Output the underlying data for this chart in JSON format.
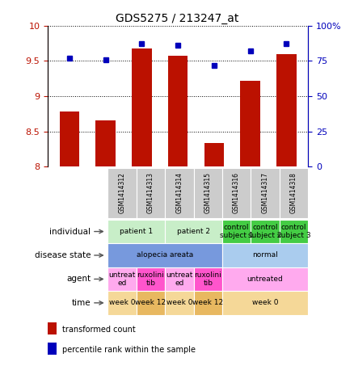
{
  "title": "GDS5275 / 213247_at",
  "samples": [
    "GSM1414312",
    "GSM1414313",
    "GSM1414314",
    "GSM1414315",
    "GSM1414316",
    "GSM1414317",
    "GSM1414318"
  ],
  "transformed_count": [
    8.78,
    8.65,
    9.68,
    9.57,
    8.33,
    9.22,
    9.6
  ],
  "percentile_rank": [
    77,
    76,
    87,
    86,
    72,
    82,
    87
  ],
  "ylim_left": [
    8.0,
    10.0
  ],
  "ylim_right": [
    0,
    100
  ],
  "yticks_left": [
    8.0,
    8.5,
    9.0,
    9.5,
    10.0
  ],
  "ytick_labels_left": [
    "8",
    "8.5",
    "9",
    "9.5",
    "10"
  ],
  "yticks_right": [
    0,
    25,
    50,
    75,
    100
  ],
  "ytick_labels_right": [
    "0",
    "25",
    "50",
    "75",
    "100%"
  ],
  "bar_color": "#bb1100",
  "dot_color": "#0000bb",
  "bar_width": 0.55,
  "annotation_rows": [
    {
      "label": "individual",
      "cells": [
        {
          "text": "patient 1",
          "span": 2,
          "color": "#c8eec8"
        },
        {
          "text": "patient 2",
          "span": 2,
          "color": "#c8eec8"
        },
        {
          "text": "control\nsubject 1",
          "span": 1,
          "color": "#44cc44"
        },
        {
          "text": "control\nsubject 2",
          "span": 1,
          "color": "#44cc44"
        },
        {
          "text": "control\nsubject 3",
          "span": 1,
          "color": "#44cc44"
        }
      ]
    },
    {
      "label": "disease state",
      "cells": [
        {
          "text": "alopecia areata",
          "span": 4,
          "color": "#7799dd"
        },
        {
          "text": "normal",
          "span": 3,
          "color": "#aaccee"
        }
      ]
    },
    {
      "label": "agent",
      "cells": [
        {
          "text": "untreat\ned",
          "span": 1,
          "color": "#ffaaee"
        },
        {
          "text": "ruxolini\ntib",
          "span": 1,
          "color": "#ff55cc"
        },
        {
          "text": "untreat\ned",
          "span": 1,
          "color": "#ffaaee"
        },
        {
          "text": "ruxolini\ntib",
          "span": 1,
          "color": "#ff55cc"
        },
        {
          "text": "untreated",
          "span": 3,
          "color": "#ffaaee"
        }
      ]
    },
    {
      "label": "time",
      "cells": [
        {
          "text": "week 0",
          "span": 1,
          "color": "#f5d898"
        },
        {
          "text": "week 12",
          "span": 1,
          "color": "#e8b860"
        },
        {
          "text": "week 0",
          "span": 1,
          "color": "#f5d898"
        },
        {
          "text": "week 12",
          "span": 1,
          "color": "#e8b860"
        },
        {
          "text": "week 0",
          "span": 3,
          "color": "#f5d898"
        }
      ]
    }
  ],
  "legend_items": [
    {
      "color": "#bb1100",
      "label": "transformed count"
    },
    {
      "color": "#0000bb",
      "label": "percentile rank within the sample"
    }
  ],
  "sample_label_bg": "#cccccc",
  "fig_width": 4.38,
  "fig_height": 4.53,
  "dpi": 100
}
